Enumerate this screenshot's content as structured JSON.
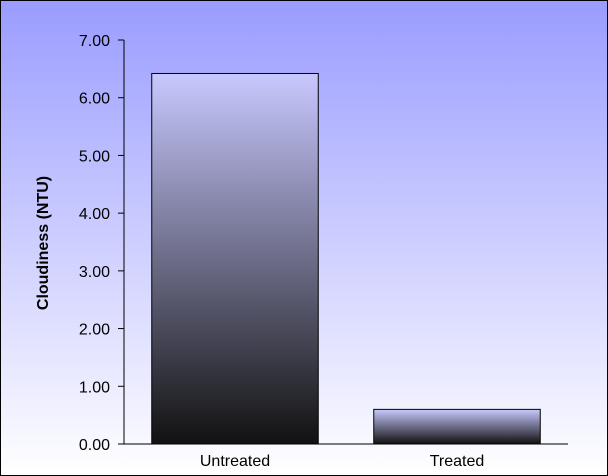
{
  "chart_data": {
    "type": "bar",
    "title": "",
    "xlabel": "",
    "ylabel": "Cloudiness (NTU)",
    "categories": [
      "Untreated",
      "Treated"
    ],
    "values": [
      6.42,
      0.6
    ],
    "ylim": [
      0,
      7
    ],
    "yticks": [
      "0.00",
      "1.00",
      "2.00",
      "3.00",
      "4.00",
      "5.00",
      "6.00",
      "7.00"
    ],
    "grid": false,
    "legend": "none",
    "colors": {
      "background_top": "#9a9cff",
      "background_bottom": "#ffffff",
      "bar_top": "#c8c8ff",
      "bar_bottom": "#111111",
      "bar_stroke": "#000000"
    }
  }
}
